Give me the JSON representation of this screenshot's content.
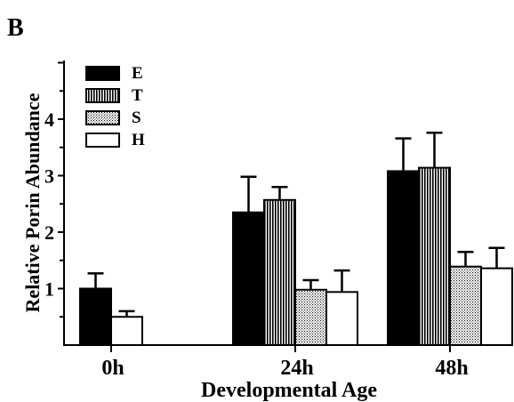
{
  "panel_label": "B",
  "chart_data": {
    "type": "bar",
    "xlabel": "Developmental Age",
    "ylabel": "Relative Porin Abundance",
    "ylim": [
      0,
      5
    ],
    "yticks": [
      "1",
      "2",
      "3",
      "4"
    ],
    "categories": [
      "0h",
      "24h",
      "48h"
    ],
    "legend": {
      "placement": "top-left"
    },
    "series": [
      {
        "name": "E",
        "pattern": "solid",
        "values": [
          1.0,
          2.35,
          3.08
        ],
        "errors": [
          0.27,
          0.63,
          0.58
        ]
      },
      {
        "name": "T",
        "pattern": "vertical-stripes",
        "values": [
          null,
          2.57,
          3.14
        ],
        "errors": [
          null,
          0.23,
          0.62
        ]
      },
      {
        "name": "S",
        "pattern": "stipple",
        "values": [
          null,
          0.98,
          1.39
        ],
        "errors": [
          null,
          0.17,
          0.26
        ]
      },
      {
        "name": "H",
        "pattern": "open",
        "values": [
          0.5,
          0.94,
          1.36
        ],
        "errors": [
          0.1,
          0.38,
          0.36
        ]
      }
    ]
  }
}
